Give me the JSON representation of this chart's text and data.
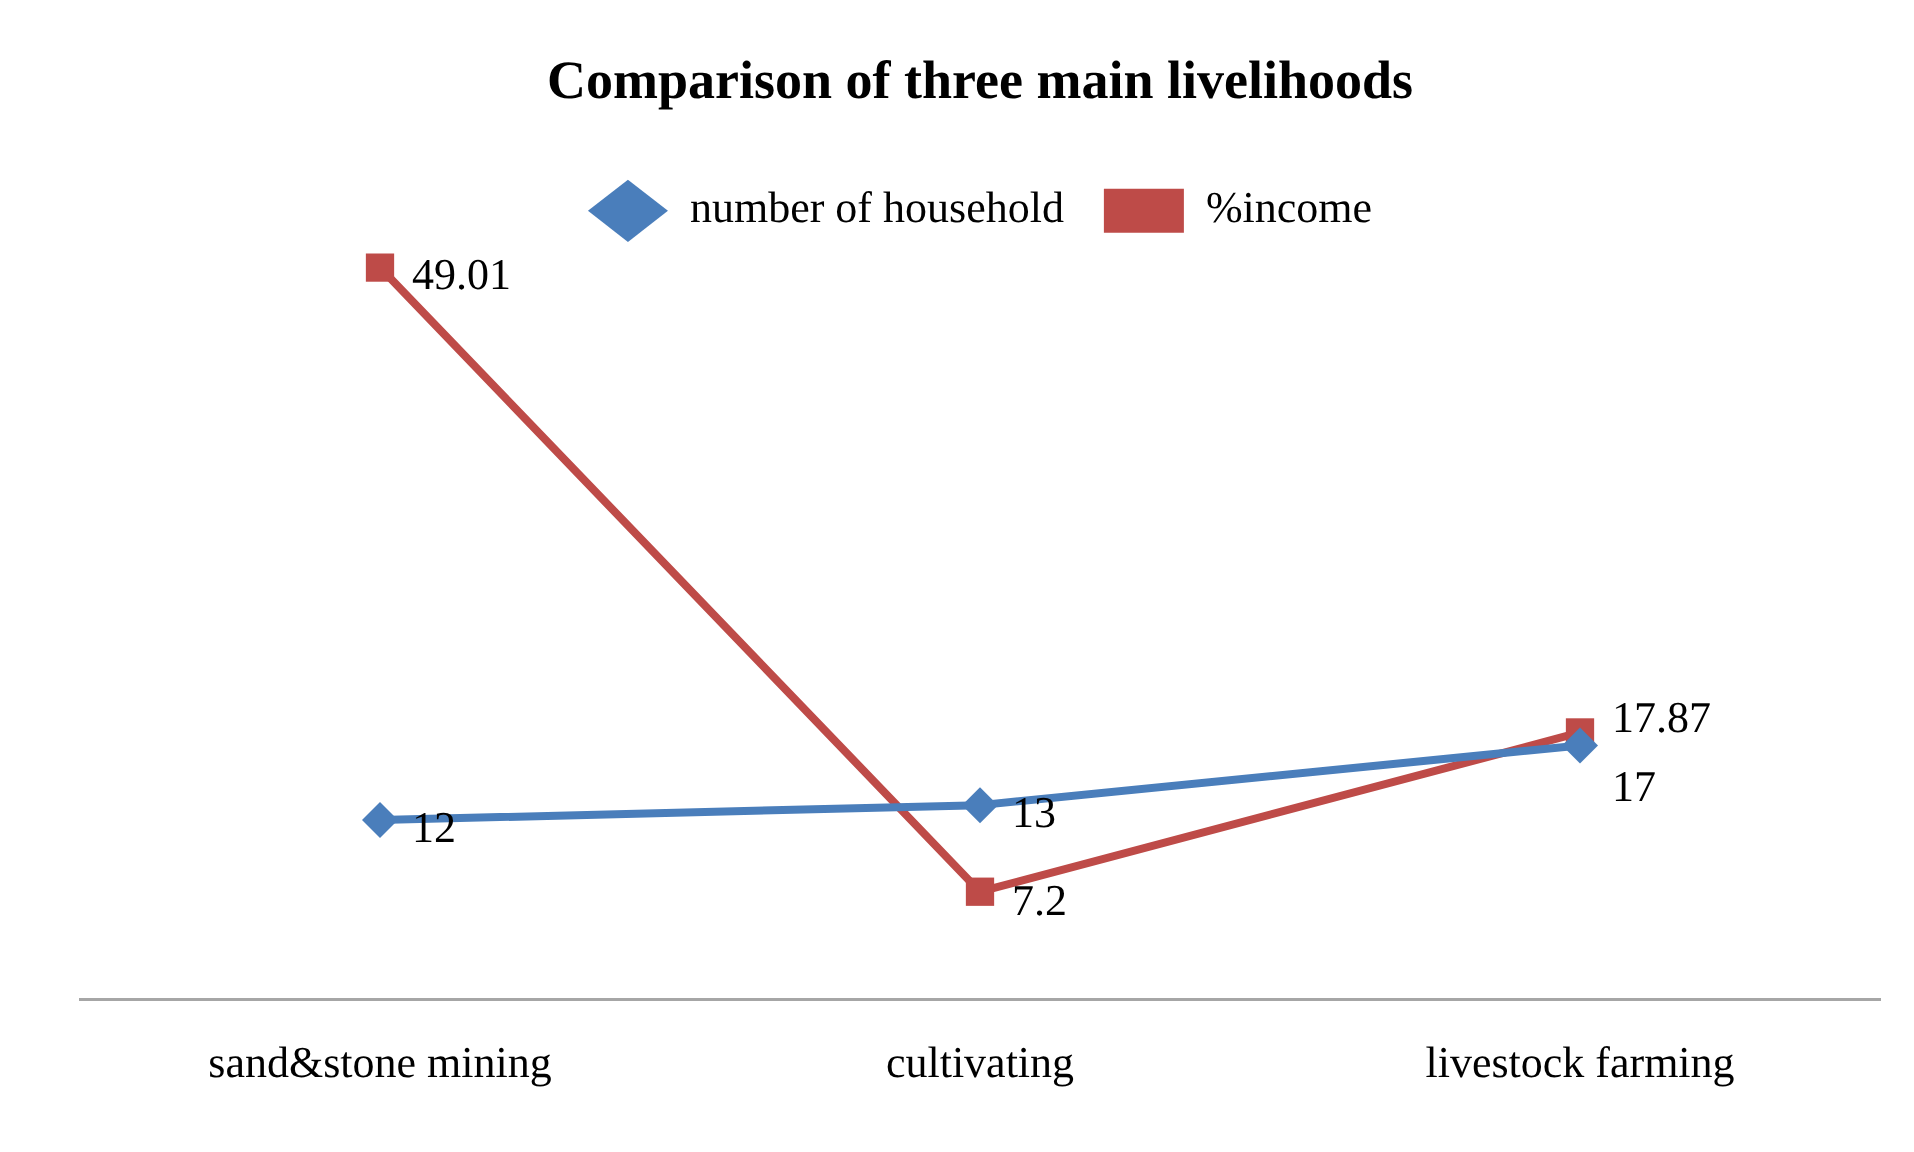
{
  "chart_data": {
    "type": "line",
    "title": "Comparison of three main livelihoods",
    "categories": [
      "sand&stone mining",
      "cultivating",
      "livestock farming"
    ],
    "series": [
      {
        "name": "number of household",
        "color": "#4a7ebb",
        "values": [
          12,
          13,
          17
        ],
        "marker": "diamond"
      },
      {
        "name": "%income",
        "color": "#be4b48",
        "values": [
          49.01,
          7.2,
          17.87
        ],
        "marker": "square"
      }
    ],
    "tick_labels": "x",
    "grid": false,
    "legend": "top",
    "data_labels": true,
    "line_style": "solid"
  }
}
